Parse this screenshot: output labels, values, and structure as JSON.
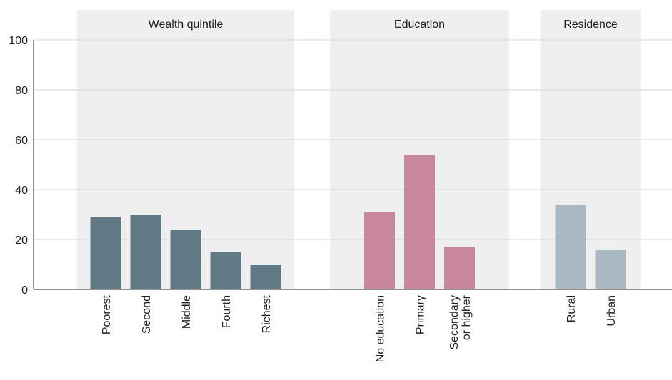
{
  "chart_data": {
    "type": "bar",
    "title": "",
    "xlabel": "",
    "ylabel": "",
    "ylim": [
      0,
      100
    ],
    "yticks": [
      0,
      20,
      40,
      60,
      80,
      100
    ],
    "grid": true,
    "groups": [
      {
        "name": "Wealth quintile",
        "color": "#5f7985",
        "categories": [
          [
            "Poorest"
          ],
          [
            "Second"
          ],
          [
            "Middle"
          ],
          [
            "Fourth"
          ],
          [
            "Richest"
          ]
        ],
        "values": [
          29,
          30,
          24,
          15,
          10
        ]
      },
      {
        "name": "Education",
        "color": "#c8879f",
        "categories": [
          [
            "No education"
          ],
          [
            "Primary"
          ],
          [
            "Secondary",
            "or higher"
          ]
        ],
        "values": [
          31,
          54,
          17
        ]
      },
      {
        "name": "Residence",
        "color": "#a9b8c1",
        "categories": [
          [
            "Rural"
          ],
          [
            "Urban"
          ]
        ],
        "values": [
          34,
          16
        ]
      }
    ]
  }
}
